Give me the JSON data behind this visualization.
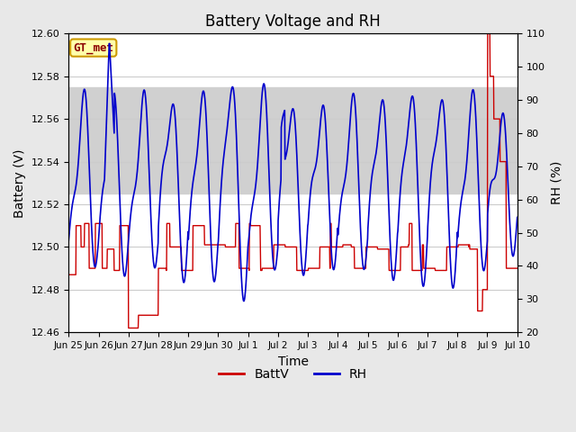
{
  "title": "Battery Voltage and RH",
  "xlabel": "Time",
  "ylabel_left": "Battery (V)",
  "ylabel_right": "RH (%)",
  "ylim_left": [
    12.46,
    12.6
  ],
  "ylim_right": [
    20,
    110
  ],
  "yticks_left": [
    12.46,
    12.48,
    12.5,
    12.52,
    12.54,
    12.56,
    12.58,
    12.6
  ],
  "yticks_right": [
    20,
    30,
    40,
    50,
    60,
    70,
    80,
    90,
    100,
    110
  ],
  "bg_color": "#e8e8e8",
  "plot_bg_color": "#ffffff",
  "grid_color": "#cccccc",
  "battv_color": "#cc0000",
  "rh_color": "#0000cc",
  "label_box_facecolor": "#ffffaa",
  "label_box_edgecolor": "#cc9900",
  "label_text": "GT_met",
  "legend_battv": "BattV",
  "legend_rh": "RH",
  "shaded_low": 12.525,
  "shaded_high": 12.575,
  "xtick_labels": [
    "Jun 25",
    "Jun 26",
    "Jun 27",
    "Jun 28",
    "Jun 29",
    "Jun 30",
    "Jul 1",
    "Jul 2",
    "Jul 3",
    "Jul 4",
    "Jul 5",
    "Jul 6",
    "Jul 7",
    "Jul 8",
    "Jul 9",
    "Jul 10"
  ],
  "title_fontsize": 12,
  "axis_fontsize": 10,
  "tick_fontsize": 8,
  "xtick_fontsize": 7.5
}
